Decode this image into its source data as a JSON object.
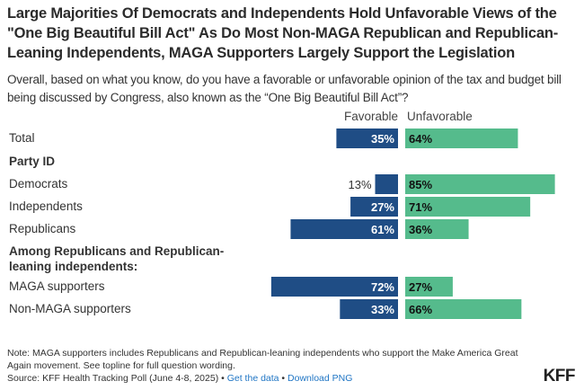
{
  "header": {
    "title": "Large Majorities Of Democrats and Independents Hold Unfavorable Views of the \"One Big Beautiful Bill Act\" As Do Most Non-MAGA Republican and Republican-Leaning Independents, MAGA Supporters Largely Support the Legislation",
    "subtitle": "Overall, based on what you know, do you have a favorable or unfavorable opinion of the tax and budget bill being discussed by Congress, also known as the “One Big Beautiful Bill Act”?"
  },
  "chart_data": {
    "type": "bar",
    "orientation": "diverging-horizontal",
    "title": "Large Majorities Of Democrats and Independents Hold Unfavorable Views of the \"One Big Beautiful Bill Act\" As Do Most Non-MAGA Republican and Republican-Leaning Independents, MAGA Supporters Largely Support the Legislation",
    "column_headers": [
      "Favorable",
      "Unfavorable"
    ],
    "groups": [
      {
        "label": "",
        "categories": [
          "Total"
        ]
      },
      {
        "label": "Party ID",
        "categories": [
          "Democrats",
          "Independents",
          "Republicans"
        ]
      },
      {
        "label": "Among Republicans and Republican-leaning independents:",
        "categories": [
          "MAGA supporters",
          "Non-MAGA supporters"
        ]
      }
    ],
    "categories": [
      "Total",
      "Democrats",
      "Independents",
      "Republicans",
      "MAGA supporters",
      "Non-MAGA supporters"
    ],
    "series": [
      {
        "name": "Favorable",
        "color": "#1f4d85",
        "values": [
          35,
          13,
          27,
          61,
          72,
          33
        ]
      },
      {
        "name": "Unfavorable",
        "color": "#55bb8c",
        "values": [
          64,
          85,
          71,
          36,
          27,
          66
        ]
      }
    ],
    "value_suffix": "%",
    "xlim": [
      0,
      100
    ]
  },
  "footer": {
    "note": "Note: MAGA supporters includes Republicans and Republican-leaning independents who support the Make America Great Again movement. See topline for full question wording.",
    "source_prefix": "Source: KFF Health Tracking Poll (June 4-8, 2025) • ",
    "get_data_link": "Get the data",
    "separator": " • ",
    "download_link": "Download PNG",
    "logo": "KFF"
  }
}
